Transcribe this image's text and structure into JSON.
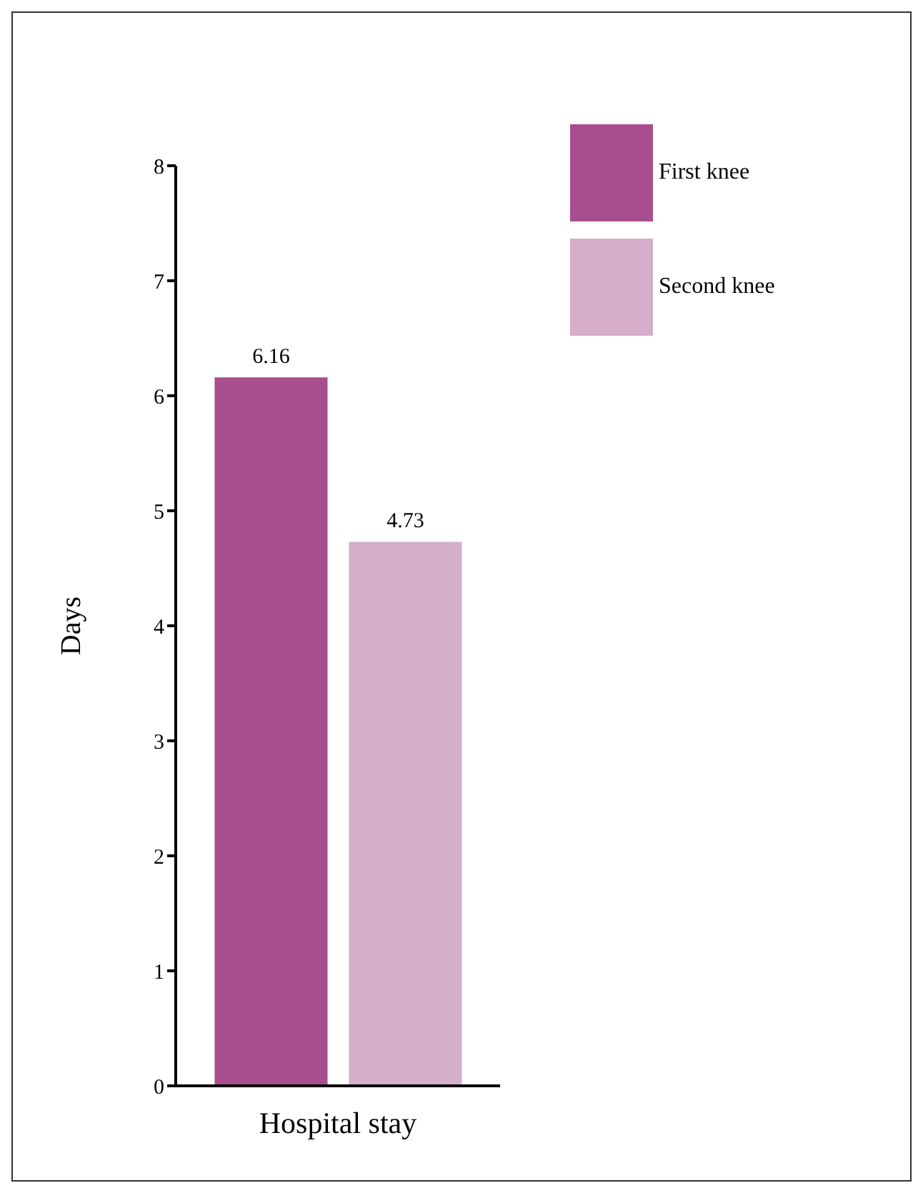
{
  "chart_data": {
    "type": "bar",
    "categories": [
      "Hospital stay"
    ],
    "ylabel": "Days",
    "series": [
      {
        "name": "First knee",
        "color": "#a84e8e",
        "values": [
          6.16
        ]
      },
      {
        "name": "Second knee",
        "color": "#d5aecc",
        "values": [
          4.73
        ]
      }
    ],
    "ylim": [
      0,
      8
    ],
    "yticks": [
      0,
      1,
      2,
      3,
      4,
      5,
      6,
      7,
      8
    ],
    "data_labels": true,
    "legend": "top right",
    "grid": false
  }
}
